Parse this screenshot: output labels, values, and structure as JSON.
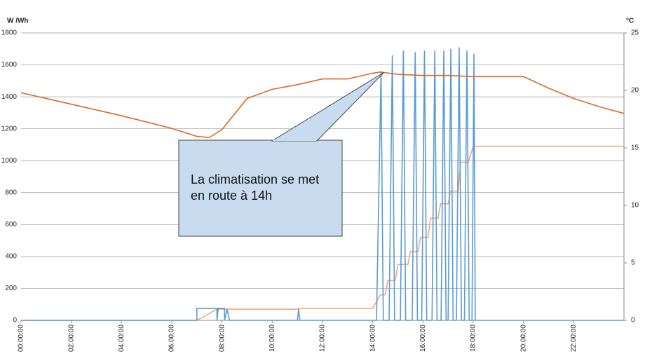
{
  "chart_data": {
    "type": "line",
    "y_label": "W /Wh",
    "y2_label": "°C",
    "annotation": "La climatisation se met en route à 14h",
    "xlim": [
      0,
      24
    ],
    "xticks": [
      {
        "value": 0,
        "label": "00:00:00"
      },
      {
        "value": 2,
        "label": "02:00:00"
      },
      {
        "value": 4,
        "label": "04:00:00"
      },
      {
        "value": 6,
        "label": "06:00:00"
      },
      {
        "value": 8,
        "label": "08:00:00"
      },
      {
        "value": 10,
        "label": "10:00:00"
      },
      {
        "value": 12,
        "label": "12:00:00"
      },
      {
        "value": 14,
        "label": "14:00:00"
      },
      {
        "value": 16,
        "label": "16:00:00"
      },
      {
        "value": 18,
        "label": "18:00:00"
      },
      {
        "value": 20,
        "label": "20:00:00"
      },
      {
        "value": 22,
        "label": "22:00:00"
      }
    ],
    "ylim": [
      0,
      1800
    ],
    "yticks": [
      0,
      200,
      400,
      600,
      800,
      1000,
      1200,
      1400,
      1600,
      1800
    ],
    "y2lim": [
      0,
      25
    ],
    "y2ticks": [
      0,
      5,
      10,
      15,
      20,
      25
    ],
    "grid": true,
    "series": [
      {
        "color": "#f4a582",
        "x": [
          0,
          7,
          7.8,
          11,
          11.1,
          14,
          14.3,
          14.5,
          14.6,
          14.9,
          15,
          15.4,
          15.5,
          15.8,
          15.9,
          16.2,
          16.3,
          16.6,
          16.7,
          17,
          17.1,
          17.4,
          17.5,
          17.8,
          17.9,
          18,
          24
        ],
        "values": [
          0,
          0,
          70,
          70,
          75,
          75,
          160,
          160,
          250,
          250,
          350,
          350,
          430,
          430,
          520,
          520,
          640,
          640,
          730,
          730,
          810,
          810,
          990,
          990,
          1040,
          1090,
          1090
        ]
      },
      {
        "color": "#5b9bd5",
        "x": [
          0,
          7,
          7,
          7.8,
          7.8,
          7.85,
          8.1,
          8.1,
          8.2,
          8.3,
          11,
          11.05,
          11.1,
          14.15,
          14.33,
          14.42,
          14.65,
          14.78,
          14.87,
          15.1,
          15.22,
          15.31,
          15.57,
          15.69,
          15.78,
          15.95,
          16.06,
          16.15,
          16.36,
          16.47,
          16.56,
          16.72,
          16.83,
          16.92,
          17.0,
          17.11,
          17.2,
          17.33,
          17.44,
          17.53,
          17.65,
          17.75,
          17.84,
          17.95,
          18.03,
          18.08,
          24
        ],
        "values": [
          0,
          0,
          75,
          75,
          0,
          75,
          75,
          0,
          70,
          0,
          0,
          70,
          0,
          0,
          1560,
          0,
          0,
          1660,
          0,
          0,
          1690,
          0,
          0,
          1680,
          0,
          0,
          1690,
          0,
          0,
          1690,
          0,
          0,
          1690,
          0,
          0,
          1700,
          0,
          0,
          1710,
          0,
          0,
          1690,
          0,
          0,
          1670,
          0,
          0
        ]
      },
      {
        "color": "#d9692a",
        "axis": "y2",
        "x": [
          0,
          2,
          4,
          6,
          7,
          7.5,
          8,
          9,
          10,
          11,
          12,
          13,
          14,
          14.3,
          15,
          16,
          17,
          18,
          19,
          20,
          21,
          22,
          23,
          24
        ],
        "values": [
          19.8,
          18.8,
          17.8,
          16.7,
          16.0,
          15.9,
          16.6,
          19.3,
          20.1,
          20.5,
          21.0,
          21.0,
          21.5,
          21.6,
          21.4,
          21.3,
          21.3,
          21.2,
          21.2,
          21.2,
          20.2,
          19.3,
          18.6,
          18.0
        ]
      }
    ]
  }
}
